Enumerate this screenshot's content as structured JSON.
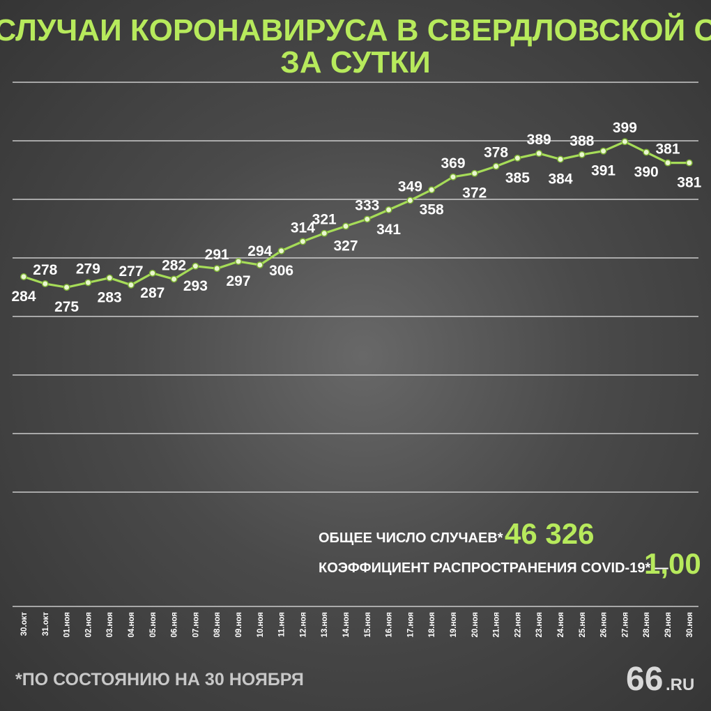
{
  "chart_data": {
    "type": "line",
    "title": "НОВЫЕ СЛУЧАИ КОРОНАВИРУСА В СВЕРДЛОВСКОЙ ОБЛАСТИ",
    "subtitle": "ЗА СУТКИ",
    "xlabel": "",
    "ylabel": "",
    "grid": true,
    "x": [
      "30.окт",
      "31.окт",
      "01.ноя",
      "02.ноя",
      "03.ноя",
      "04.ноя",
      "05.ноя",
      "06.ноя",
      "07.ноя",
      "08.ноя",
      "09.ноя",
      "10.ноя",
      "11.ноя",
      "12.ноя",
      "13.ноя",
      "14.ноя",
      "15.ноя",
      "16.ноя",
      "17.ноя",
      "18.ноя",
      "19.ноя",
      "20.ноя",
      "21.ноя",
      "22.ноя",
      "23.ноя",
      "24.ноя",
      "25.ноя",
      "26.ноя",
      "27.ноя",
      "28.ноя",
      "29.ноя",
      "30.ноя"
    ],
    "series": [
      {
        "values": [
          284,
          278,
          275,
          279,
          283,
          277,
          287,
          282,
          293,
          291,
          297,
          294,
          306,
          314,
          321,
          327,
          333,
          341,
          349,
          358,
          369,
          372,
          378,
          385,
          389,
          384,
          388,
          391,
          399,
          390,
          381,
          381
        ]
      }
    ],
    "line_color": "#a6dc58"
  },
  "summary": {
    "total_label": "ОБЩЕЕ ЧИСЛО СЛУЧАЕВ* —",
    "total_value": "46 326",
    "r_label": "КОЭФФИЦИЕНТ РАСПРОСТРАНЕНИЯ COVID-19* —",
    "r_value": "1,00"
  },
  "footnote": "*ПО СОСТОЯНИЮ НА 30 НОЯБРЯ",
  "logo": {
    "number": "66",
    "suffix": ".RU"
  }
}
